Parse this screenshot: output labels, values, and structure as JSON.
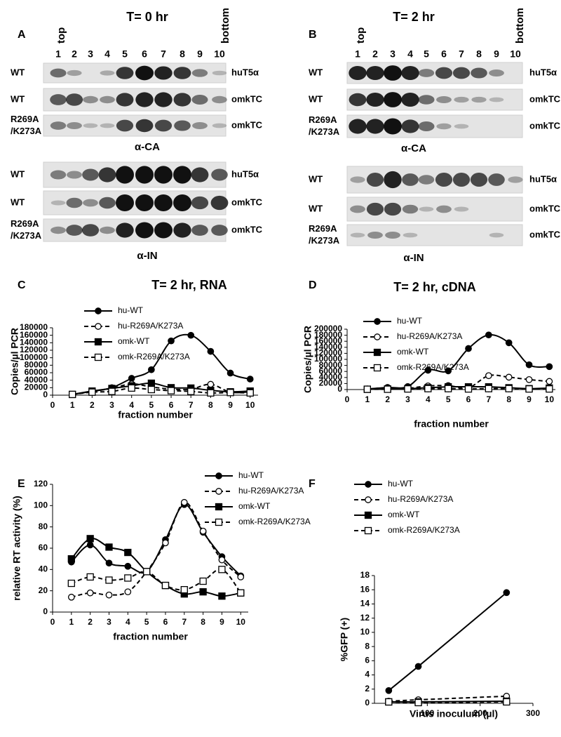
{
  "blots": [
    {
      "letter": "A",
      "title": "T= 0 hr",
      "top_label": "top",
      "bottom_label": "bottom",
      "lanes": [
        1,
        2,
        3,
        4,
        5,
        6,
        7,
        8,
        9,
        10
      ],
      "groups": [
        {
          "antibody": "α-CA",
          "rows": [
            {
              "sample_lines": [
                "WT"
              ],
              "cell": "huT5α"
            },
            {
              "sample_lines": [
                "WT"
              ],
              "cell": "omkTC"
            },
            {
              "sample_lines": [
                "R269A",
                "/K273A"
              ],
              "cell": "omkTC"
            }
          ]
        },
        {
          "antibody": "α-IN",
          "rows": [
            {
              "sample_lines": [
                "WT"
              ],
              "cell": "huT5α"
            },
            {
              "sample_lines": [
                "WT"
              ],
              "cell": "omkTC"
            },
            {
              "sample_lines": [
                "R269A",
                "/K273A"
              ],
              "cell": "omkTC"
            }
          ]
        }
      ]
    },
    {
      "letter": "B",
      "title": "T= 2 hr",
      "top_label": "top",
      "bottom_label": "bottom",
      "lanes": [
        1,
        2,
        3,
        4,
        5,
        6,
        7,
        8,
        9,
        10
      ],
      "groups": [
        {
          "antibody": "α-CA",
          "rows": [
            {
              "sample_lines": [
                "WT"
              ],
              "cell": "huT5α"
            },
            {
              "sample_lines": [
                "WT"
              ],
              "cell": "omkTC"
            },
            {
              "sample_lines": [
                "R269A",
                "/K273A"
              ],
              "cell": "omkTC"
            }
          ]
        },
        {
          "antibody": "α-IN",
          "rows": [
            {
              "sample_lines": [
                "WT"
              ],
              "cell": "huT5α"
            },
            {
              "sample_lines": [
                "WT"
              ],
              "cell": "omkTC"
            },
            {
              "sample_lines": [
                "R269A",
                "/K273A"
              ],
              "cell": "omkTC"
            }
          ]
        }
      ]
    }
  ],
  "chart_data": [
    {
      "type": "line",
      "letter": "C",
      "title": "T= 2 hr, RNA",
      "x_label": "fraction number",
      "y_label": "Copies/µl PCR",
      "smooth": true,
      "x": [
        1,
        2,
        3,
        4,
        5,
        6,
        7,
        8,
        9,
        10
      ],
      "xlim": [
        0,
        10.4
      ],
      "xticks": [
        0,
        1,
        2,
        3,
        4,
        5,
        6,
        7,
        8,
        9,
        10
      ],
      "ylim": [
        0,
        180000
      ],
      "yticks": [
        0,
        20000,
        40000,
        60000,
        80000,
        100000,
        120000,
        140000,
        160000,
        180000
      ],
      "series": [
        {
          "name": "hu-WT",
          "color": "#000000",
          "dash": false,
          "marker": "circle",
          "filled": true,
          "values": [
            2000,
            10000,
            20000,
            45000,
            68000,
            145000,
            160000,
            117000,
            59000,
            43000
          ]
        },
        {
          "name": "hu-R269A/K273A",
          "color": "#000000",
          "dash": true,
          "marker": "circle",
          "filled": false,
          "values": [
            2000,
            10000,
            18000,
            30000,
            22000,
            16000,
            16000,
            29000,
            8000,
            9000
          ]
        },
        {
          "name": "omk-WT",
          "color": "#000000",
          "dash": false,
          "marker": "square",
          "filled": true,
          "values": [
            2000,
            11000,
            18000,
            25000,
            32000,
            20000,
            19000,
            13000,
            9000,
            11000
          ]
        },
        {
          "name": "omk-R269A/K273A",
          "color": "#000000",
          "dash": true,
          "marker": "square",
          "filled": false,
          "values": [
            2000,
            8000,
            10000,
            19000,
            15000,
            12000,
            10000,
            6000,
            7000,
            6000
          ]
        }
      ]
    },
    {
      "type": "line",
      "letter": "D",
      "title": "T= 2 hr, cDNA",
      "x_label": "fraction number",
      "y_label": "Copies/µl PCR",
      "smooth": true,
      "x": [
        1,
        2,
        3,
        4,
        5,
        6,
        7,
        8,
        9,
        10
      ],
      "xlim": [
        0,
        10.3
      ],
      "xticks": [
        0,
        1,
        2,
        3,
        4,
        5,
        6,
        7,
        8,
        9,
        10
      ],
      "ylim": [
        0,
        200000
      ],
      "yticks": [
        0,
        20000,
        40000,
        60000,
        80000,
        100000,
        120000,
        140000,
        160000,
        180000,
        200000
      ],
      "series": [
        {
          "name": "hu-WT",
          "color": "#000000",
          "dash": false,
          "marker": "circle",
          "filled": true,
          "values": [
            2000,
            7000,
            10000,
            64000,
            62000,
            136000,
            181000,
            155000,
            82000,
            76000
          ]
        },
        {
          "name": "hu-R269A/K273A",
          "color": "#000000",
          "dash": true,
          "marker": "circle",
          "filled": false,
          "values": [
            1000,
            3000,
            4000,
            12000,
            13000,
            6000,
            46000,
            41000,
            33000,
            27000
          ]
        },
        {
          "name": "omk-WT",
          "color": "#000000",
          "dash": false,
          "marker": "square",
          "filled": true,
          "values": [
            1000,
            2000,
            3000,
            6000,
            9000,
            9000,
            9000,
            6000,
            3000,
            5000
          ]
        },
        {
          "name": "omk-R269A/K273A",
          "color": "#000000",
          "dash": true,
          "marker": "square",
          "filled": false,
          "values": [
            1000,
            1000,
            2000,
            3000,
            3000,
            2000,
            3000,
            3000,
            2000,
            2000
          ]
        }
      ]
    },
    {
      "type": "line",
      "letter": "E",
      "x_label": "fraction number",
      "y_label": "relative RT activity (%)",
      "smooth": true,
      "x": [
        1,
        2,
        3,
        4,
        5,
        6,
        7,
        8,
        9,
        10
      ],
      "xlim": [
        0,
        10.4
      ],
      "xticks": [
        0,
        1,
        2,
        3,
        4,
        5,
        6,
        7,
        8,
        9,
        10
      ],
      "ylim": [
        0,
        120
      ],
      "yticks": [
        0,
        20,
        40,
        60,
        80,
        100,
        120
      ],
      "series": [
        {
          "name": "hu-WT",
          "color": "#000000",
          "dash": false,
          "marker": "circle",
          "filled": true,
          "values": [
            47,
            63,
            46,
            43,
            38,
            68,
            101,
            75,
            52,
            34
          ]
        },
        {
          "name": "hu-R269A/K273A",
          "color": "#000000",
          "dash": true,
          "marker": "circle",
          "filled": false,
          "values": [
            14,
            18,
            16,
            19,
            38,
            65,
            103,
            76,
            49,
            33
          ]
        },
        {
          "name": "omk-WT",
          "color": "#000000",
          "dash": false,
          "marker": "square",
          "filled": true,
          "values": [
            50,
            69,
            61,
            56,
            38,
            25,
            17,
            19,
            15,
            18
          ]
        },
        {
          "name": "omk-R269A/K273A",
          "color": "#000000",
          "dash": true,
          "marker": "square",
          "filled": false,
          "values": [
            27,
            33,
            30,
            32,
            38,
            25,
            21,
            29,
            40,
            18
          ]
        }
      ]
    },
    {
      "type": "line",
      "letter": "F",
      "x_label": "Virus inoculum (µl)",
      "y_label": "%GFP (+)",
      "smooth": false,
      "x": [
        27,
        83,
        250
      ],
      "xlim": [
        0,
        300
      ],
      "xticks": [
        100,
        200,
        300
      ],
      "ylim": [
        0,
        18
      ],
      "yticks": [
        0,
        2,
        4,
        6,
        8,
        10,
        12,
        14,
        16,
        18
      ],
      "series": [
        {
          "name": "hu-WT",
          "color": "#000000",
          "dash": false,
          "marker": "circle",
          "filled": true,
          "values": [
            1.8,
            5.2,
            15.6
          ]
        },
        {
          "name": "hu-R269A/K273A",
          "color": "#000000",
          "dash": true,
          "marker": "circle",
          "filled": false,
          "values": [
            0.3,
            0.5,
            1.0
          ]
        },
        {
          "name": "omk-WT",
          "color": "#000000",
          "dash": false,
          "marker": "square",
          "filled": true,
          "values": [
            0.2,
            0.2,
            0.3
          ]
        },
        {
          "name": "omk-R269A/K273A",
          "color": "#000000",
          "dash": true,
          "marker": "square",
          "filled": false,
          "values": [
            0.2,
            0.1,
            0.2
          ]
        }
      ]
    }
  ]
}
